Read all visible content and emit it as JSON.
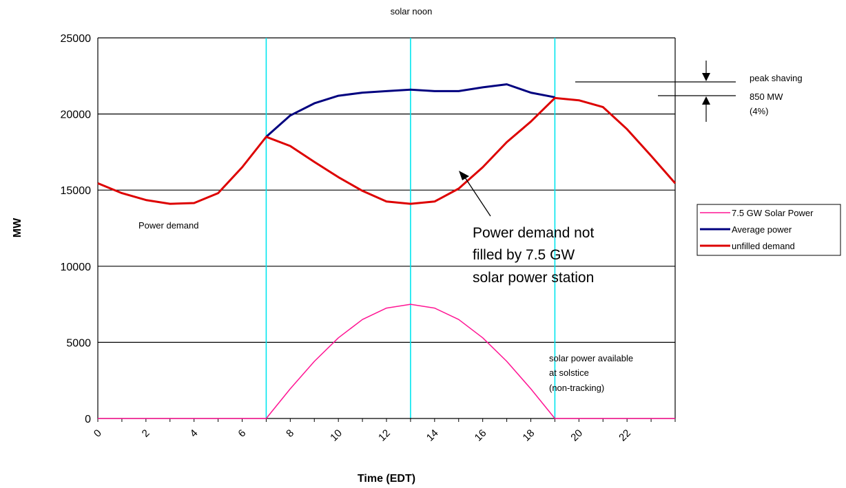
{
  "chart_data": {
    "type": "line",
    "xlabel": "Time (EDT)",
    "ylabel": "MW",
    "xlim": [
      0,
      24
    ],
    "ylim": [
      0,
      25000
    ],
    "x_ticks": [
      "0",
      "2",
      "4",
      "6",
      "8",
      "10",
      "12",
      "14",
      "16",
      "18",
      "20",
      "22"
    ],
    "y_ticks": [
      "0",
      "5000",
      "10000",
      "15000",
      "20000",
      "25000"
    ],
    "grid": "horizontal",
    "legend_position": "right",
    "vertical_lines_x": [
      7,
      13,
      19
    ],
    "series": [
      {
        "name": "7.5 GW Solar Power",
        "color": "#ff1493",
        "x": [
          0,
          1,
          2,
          3,
          4,
          5,
          6,
          7,
          8,
          9,
          10,
          11,
          12,
          13,
          14,
          15,
          16,
          17,
          18,
          19,
          20,
          21,
          22,
          23,
          24
        ],
        "values": [
          0,
          0,
          0,
          0,
          0,
          0,
          0,
          0,
          1950,
          3750,
          5300,
          6500,
          7250,
          7500,
          7250,
          6500,
          5300,
          3750,
          1950,
          0,
          0,
          0,
          0,
          0,
          0
        ]
      },
      {
        "name": "Average power",
        "color": "#00007f",
        "x": [
          7,
          8,
          9,
          10,
          11,
          12,
          13,
          14,
          15,
          16,
          17,
          18,
          19
        ],
        "values": [
          18500,
          19900,
          20700,
          21200,
          21400,
          21500,
          21600,
          21500,
          21500,
          21750,
          21950,
          21400,
          21100
        ]
      },
      {
        "name": "unfilled demand",
        "color": "#dd0000",
        "x": [
          0,
          1,
          2,
          3,
          4,
          5,
          6,
          7,
          8,
          9,
          10,
          11,
          12,
          13,
          14,
          15,
          16,
          17,
          18,
          19,
          20,
          21,
          22,
          23,
          24
        ],
        "values": [
          15450,
          14800,
          14350,
          14100,
          14150,
          14800,
          16500,
          18500,
          17900,
          16850,
          15850,
          14950,
          14250,
          14100,
          14250,
          15100,
          16500,
          18150,
          19500,
          21050,
          20900,
          20450,
          19000,
          17250,
          15450
        ]
      }
    ],
    "annotations": {
      "solar_noon": "solar noon",
      "power_demand": "Power demand",
      "not_filled": [
        "Power demand not",
        "filled by 7.5 GW",
        "solar power station"
      ],
      "peak_shaving": [
        "peak shaving",
        "850 MW",
        "(4%)"
      ],
      "solar_available": [
        "solar power available",
        "at solstice",
        "(non-tracking)"
      ]
    }
  }
}
